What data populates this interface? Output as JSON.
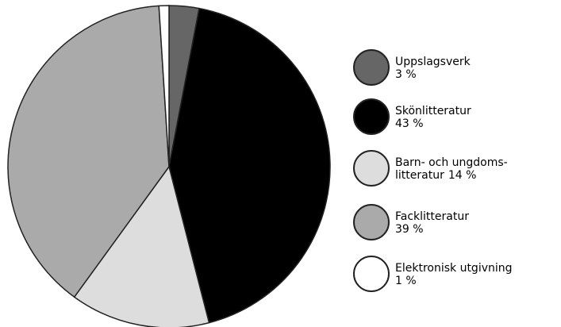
{
  "chart_data": {
    "type": "pie",
    "categories": [
      "Uppslagsverk",
      "Skönlitteratur",
      [
        "Barn- och ungdoms-",
        "litteratur"
      ],
      "Facklitteratur",
      "Elektronisk utgivning"
    ],
    "values": [
      3,
      43,
      14,
      39,
      1
    ],
    "value_labels": [
      "3 %",
      "43 %",
      "14 %",
      "39 %",
      "1 %"
    ],
    "colors": [
      "#666666",
      "#000000",
      "#dddddd",
      "#aaaaaa",
      "#ffffff"
    ]
  }
}
